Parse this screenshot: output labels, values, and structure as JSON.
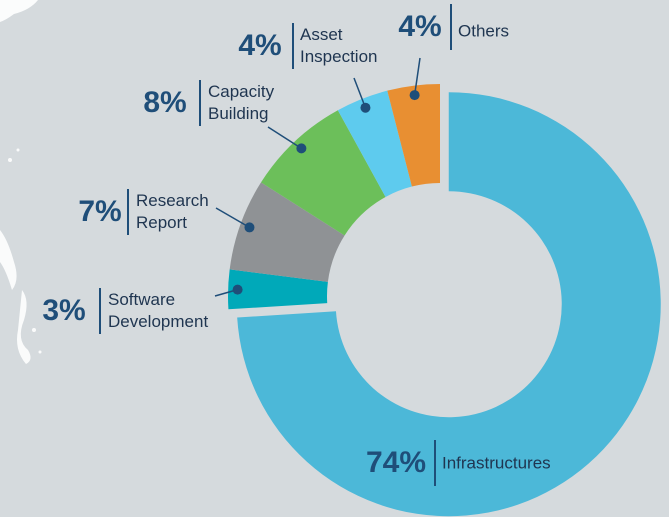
{
  "chart_data": {
    "type": "pie",
    "categories": [
      "Infrastructures",
      "Software Development",
      "Research Report",
      "Capacity Building",
      "Asset Inspection",
      "Others"
    ],
    "values": [
      74,
      3,
      7,
      8,
      4,
      4
    ],
    "value_labels": [
      "74%",
      "3%",
      "7%",
      "8%",
      "4%",
      "4%"
    ],
    "colors": [
      "#4cb8d8",
      "#00a9b9",
      "#8f9295",
      "#6cbf5a",
      "#5ecbee",
      "#e88f32"
    ],
    "donut": true
  }
}
